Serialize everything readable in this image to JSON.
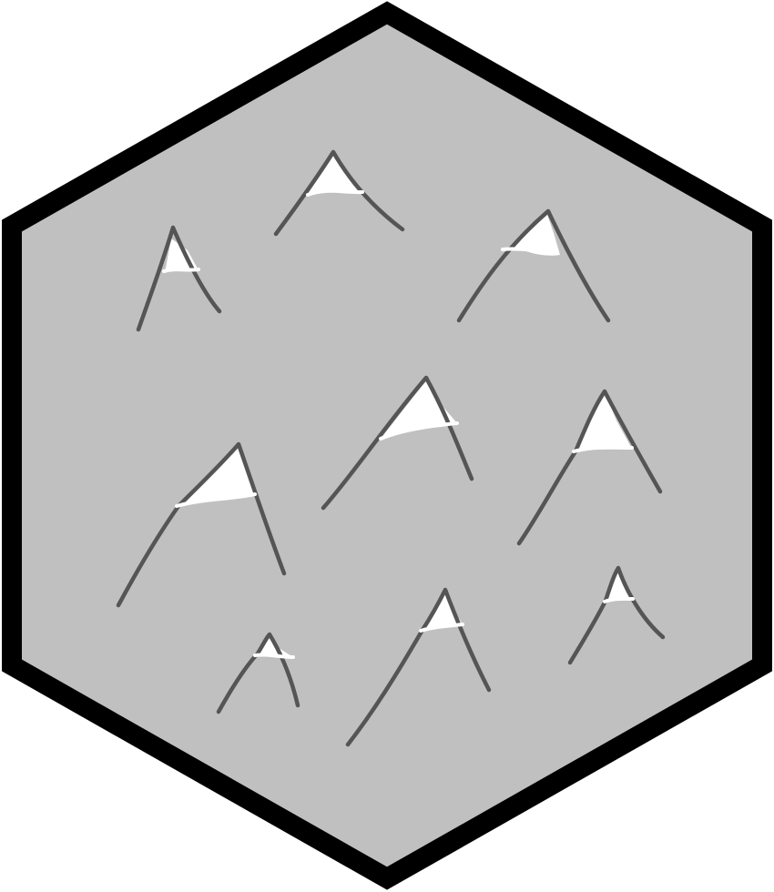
{
  "tile": {
    "terrain": "mountains",
    "fill_color": "#c0c0c0",
    "border_color": "#000000",
    "mountain_outline_color": "#555555",
    "snow_color": "#ffffff"
  },
  "mountains": [
    {
      "name": "mountain-1"
    },
    {
      "name": "mountain-2"
    },
    {
      "name": "mountain-3"
    },
    {
      "name": "mountain-4"
    },
    {
      "name": "mountain-5"
    },
    {
      "name": "mountain-6"
    },
    {
      "name": "mountain-7"
    },
    {
      "name": "mountain-8"
    },
    {
      "name": "mountain-9"
    }
  ]
}
